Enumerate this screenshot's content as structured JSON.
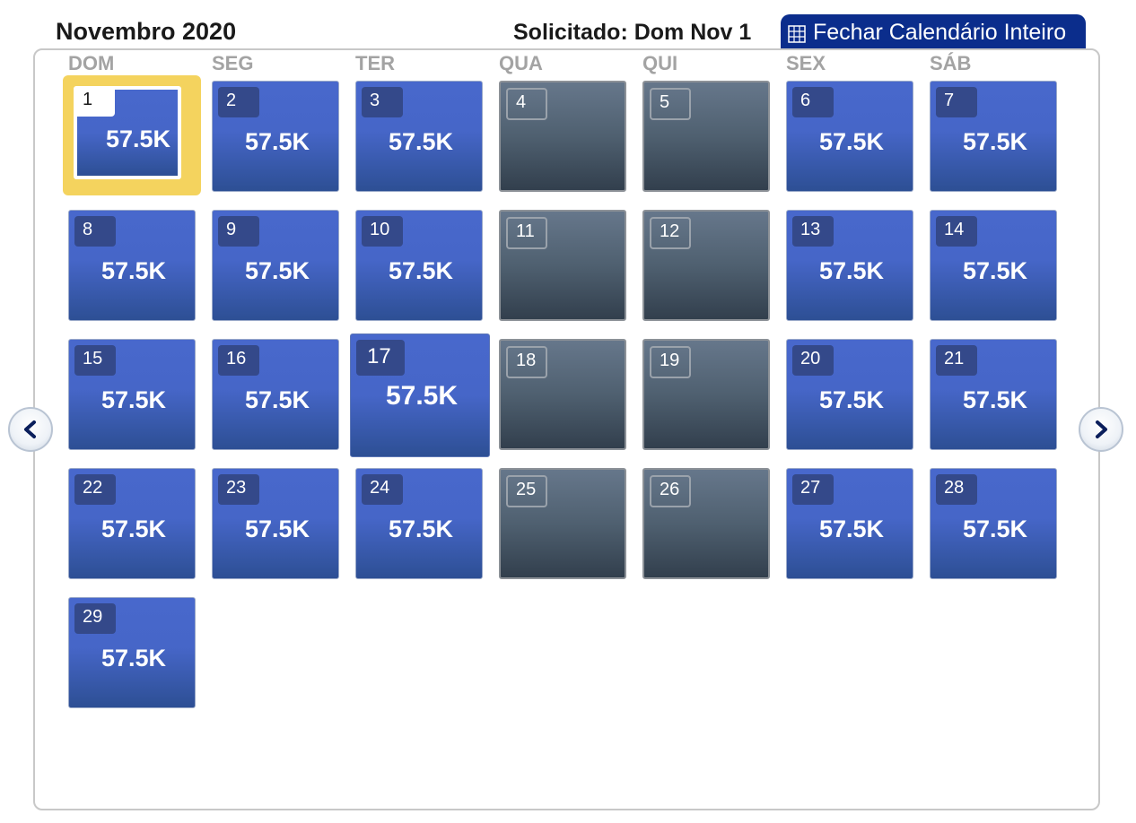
{
  "header": {
    "month_title": "Novembro 2020",
    "requested_label": "Solicitado: Dom Nov 1",
    "close_button_label": "Fechar Calendário Inteiro",
    "close_button_icon": "grid-icon"
  },
  "weekdays": [
    "DOM",
    "SEG",
    "TER",
    "QUA",
    "QUI",
    "SEX",
    "SÁB"
  ],
  "navigation": {
    "prev_icon": "chevron-left-icon",
    "next_icon": "chevron-right-icon"
  },
  "colors": {
    "available": "#4666c8",
    "unavailable": "#4f6070",
    "selected_border": "#f4d35e",
    "header_button": "#0b2d8c"
  },
  "days": [
    {
      "day": "1",
      "price": "57.5K",
      "available": true,
      "selected": true
    },
    {
      "day": "2",
      "price": "57.5K",
      "available": true
    },
    {
      "day": "3",
      "price": "57.5K",
      "available": true
    },
    {
      "day": "4",
      "price": "",
      "available": false
    },
    {
      "day": "5",
      "price": "",
      "available": false
    },
    {
      "day": "6",
      "price": "57.5K",
      "available": true
    },
    {
      "day": "7",
      "price": "57.5K",
      "available": true
    },
    {
      "day": "8",
      "price": "57.5K",
      "available": true
    },
    {
      "day": "9",
      "price": "57.5K",
      "available": true
    },
    {
      "day": "10",
      "price": "57.5K",
      "available": true
    },
    {
      "day": "11",
      "price": "",
      "available": false
    },
    {
      "day": "12",
      "price": "",
      "available": false
    },
    {
      "day": "13",
      "price": "57.5K",
      "available": true
    },
    {
      "day": "14",
      "price": "57.5K",
      "available": true
    },
    {
      "day": "15",
      "price": "57.5K",
      "available": true
    },
    {
      "day": "16",
      "price": "57.5K",
      "available": true
    },
    {
      "day": "17",
      "price": "57.5K",
      "available": true,
      "hovered": true
    },
    {
      "day": "18",
      "price": "",
      "available": false
    },
    {
      "day": "19",
      "price": "",
      "available": false
    },
    {
      "day": "20",
      "price": "57.5K",
      "available": true
    },
    {
      "day": "21",
      "price": "57.5K",
      "available": true
    },
    {
      "day": "22",
      "price": "57.5K",
      "available": true
    },
    {
      "day": "23",
      "price": "57.5K",
      "available": true
    },
    {
      "day": "24",
      "price": "57.5K",
      "available": true
    },
    {
      "day": "25",
      "price": "",
      "available": false
    },
    {
      "day": "26",
      "price": "",
      "available": false
    },
    {
      "day": "27",
      "price": "57.5K",
      "available": true
    },
    {
      "day": "28",
      "price": "57.5K",
      "available": true
    },
    {
      "day": "29",
      "price": "57.5K",
      "available": true
    }
  ]
}
